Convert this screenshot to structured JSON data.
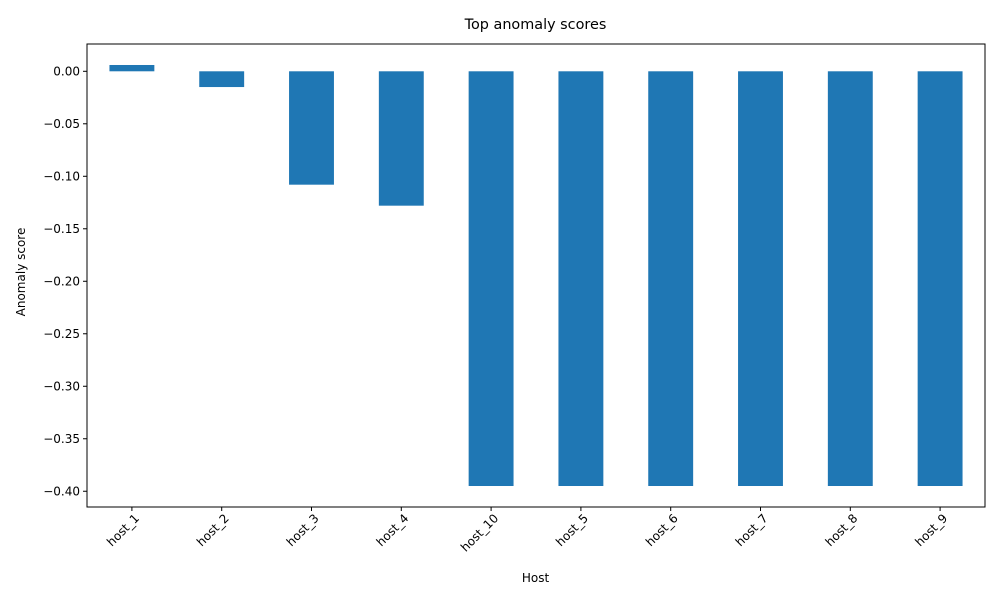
{
  "chart_data": {
    "type": "bar",
    "title": "Top anomaly scores",
    "xlabel": "Host",
    "ylabel": "Anomaly score",
    "categories": [
      "host_1",
      "host_2",
      "host_3",
      "host_4",
      "host_10",
      "host_5",
      "host_6",
      "host_7",
      "host_8",
      "host_9"
    ],
    "values": [
      0.006,
      -0.015,
      -0.108,
      -0.128,
      -0.395,
      -0.395,
      -0.395,
      -0.395,
      -0.395,
      -0.395
    ],
    "ylim": [
      -0.415,
      0.026
    ],
    "yticks": [
      0.0,
      -0.05,
      -0.1,
      -0.15,
      -0.2,
      -0.25,
      -0.3,
      -0.35,
      -0.4
    ],
    "ytick_labels": [
      "0.00",
      "−0.05",
      "−0.10",
      "−0.15",
      "−0.20",
      "−0.25",
      "−0.30",
      "−0.35",
      "−0.40"
    ],
    "bar_color": "#1f77b4",
    "grid": false,
    "legend": "none",
    "xtick_rotation": "45deg"
  }
}
